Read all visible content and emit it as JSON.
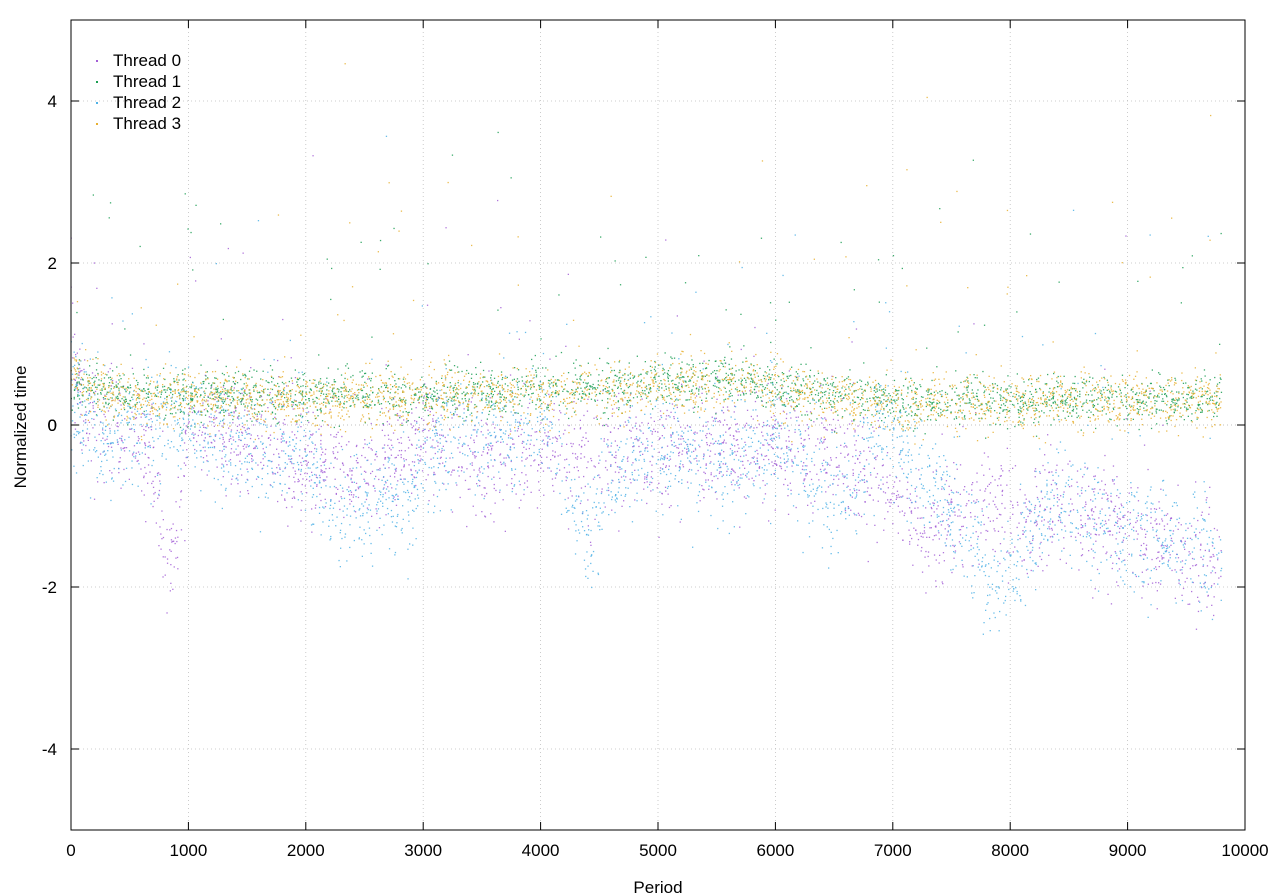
{
  "chart_data": {
    "type": "scatter",
    "title": "",
    "xlabel": "Period",
    "ylabel": "Normalized time",
    "xlim": [
      0,
      10000
    ],
    "ylim": [
      -5,
      5
    ],
    "x_ticks": [
      0,
      1000,
      2000,
      3000,
      4000,
      5000,
      6000,
      7000,
      8000,
      9000,
      10000
    ],
    "y_ticks": [
      -4,
      -2,
      0,
      2,
      4
    ],
    "x_tick_labels": [
      "0",
      "1000",
      "2000",
      "3000",
      "4000",
      "5000",
      "6000",
      "7000",
      "8000",
      "9000",
      "10000"
    ],
    "y_tick_labels": [
      "-4",
      "-2",
      "0",
      "2",
      "4"
    ],
    "grid": true,
    "legend_position": "top-left",
    "x_range_of_data": [
      0,
      9800
    ],
    "series": [
      {
        "name": "Thread 0",
        "color": "#a35fd6",
        "anchors": [
          [
            0,
            0.6
          ],
          [
            200,
            0.05
          ],
          [
            500,
            -0.1
          ],
          [
            700,
            -0.4
          ],
          [
            800,
            -1.7
          ],
          [
            900,
            -1.6
          ],
          [
            1000,
            0.0
          ],
          [
            1500,
            -0.1
          ],
          [
            2000,
            -0.5
          ],
          [
            2500,
            -0.6
          ],
          [
            3000,
            -0.2
          ],
          [
            3500,
            -0.4
          ],
          [
            4000,
            -0.3
          ],
          [
            4500,
            -0.4
          ],
          [
            5000,
            -0.3
          ],
          [
            5500,
            -0.2
          ],
          [
            6000,
            -0.3
          ],
          [
            6500,
            -0.4
          ],
          [
            7000,
            -0.9
          ],
          [
            7300,
            -1.4
          ],
          [
            7600,
            -1.1
          ],
          [
            7800,
            -0.9
          ],
          [
            8000,
            -1.0
          ],
          [
            8200,
            -1.1
          ],
          [
            8500,
            -1.0
          ],
          [
            9000,
            -1.3
          ],
          [
            9500,
            -1.6
          ],
          [
            9800,
            -1.7
          ]
        ],
        "spread": 0.35,
        "n": 2600
      },
      {
        "name": "Thread 1",
        "color": "#1a9e52",
        "anchors": [
          [
            0,
            0.5
          ],
          [
            500,
            0.4
          ],
          [
            1000,
            0.35
          ],
          [
            2000,
            0.4
          ],
          [
            3000,
            0.35
          ],
          [
            4000,
            0.45
          ],
          [
            5000,
            0.5
          ],
          [
            5700,
            0.6
          ],
          [
            6000,
            0.45
          ],
          [
            7000,
            0.3
          ],
          [
            8000,
            0.3
          ],
          [
            9000,
            0.3
          ],
          [
            9800,
            0.35
          ]
        ],
        "spread": 0.15,
        "n": 2600
      },
      {
        "name": "Thread 2",
        "color": "#4fb2e6",
        "anchors": [
          [
            0,
            0.3
          ],
          [
            300,
            -0.2
          ],
          [
            800,
            0.1
          ],
          [
            1400,
            -0.3
          ],
          [
            2000,
            -0.3
          ],
          [
            2300,
            -1.2
          ],
          [
            2600,
            -0.8
          ],
          [
            2900,
            -0.9
          ],
          [
            3100,
            -0.2
          ],
          [
            4000,
            0.0
          ],
          [
            4400,
            -1.3
          ],
          [
            4600,
            -0.7
          ],
          [
            5000,
            -0.2
          ],
          [
            5600,
            -0.5
          ],
          [
            6000,
            -0.1
          ],
          [
            6500,
            -1.0
          ],
          [
            6900,
            0.1
          ],
          [
            7300,
            -0.7
          ],
          [
            7600,
            -1.3
          ],
          [
            7900,
            -2.0
          ],
          [
            8200,
            -1.3
          ],
          [
            8400,
            -0.8
          ],
          [
            8700,
            -1.1
          ],
          [
            9000,
            -1.3
          ],
          [
            9500,
            -1.5
          ],
          [
            9800,
            -1.6
          ]
        ],
        "spread": 0.35,
        "n": 2600
      },
      {
        "name": "Thread 3",
        "color": "#e8b030",
        "anchors": [
          [
            0,
            0.6
          ],
          [
            500,
            0.3
          ],
          [
            1000,
            0.35
          ],
          [
            2000,
            0.3
          ],
          [
            3000,
            0.35
          ],
          [
            4000,
            0.4
          ],
          [
            5000,
            0.45
          ],
          [
            5700,
            0.55
          ],
          [
            6000,
            0.4
          ],
          [
            7000,
            0.25
          ],
          [
            8000,
            0.3
          ],
          [
            9000,
            0.25
          ],
          [
            9800,
            0.3
          ]
        ],
        "spread": 0.17,
        "n": 2600
      }
    ]
  }
}
